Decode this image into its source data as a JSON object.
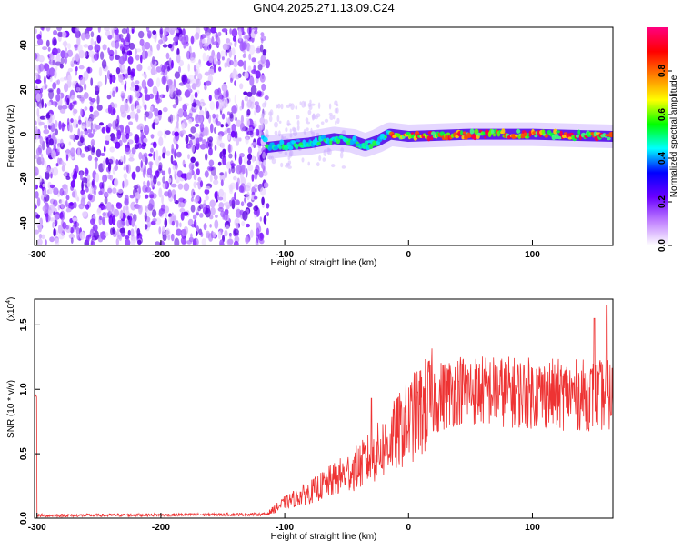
{
  "title": "GN04.2025.271.13.09.C24",
  "chart_data": [
    {
      "type": "heatmap",
      "xlabel": "Height of straight line (km)",
      "ylabel": "Frequency (Hz)",
      "xlim": [
        -302,
        165
      ],
      "ylim": [
        -50,
        48
      ],
      "x_ticks": [
        -300,
        -200,
        -100,
        0,
        100
      ],
      "y_ticks": [
        -40,
        -20,
        0,
        20,
        40
      ],
      "grid": false,
      "colorbar": {
        "label": "Normalized spectral amplitude",
        "range": [
          0,
          1
        ],
        "ticks": [
          "0.0",
          "0.2",
          "0.4",
          "0.6",
          "0.8"
        ],
        "colormap": [
          "#ffffff",
          "#c080ff",
          "#6a00ff",
          "#0000ff",
          "#00ffff",
          "#00ff00",
          "#ffff00",
          "#ff8000",
          "#ff0000",
          "#ff0080"
        ]
      },
      "noise_region_x": [
        -302,
        -118
      ],
      "signal_track": [
        {
          "x": -115,
          "y": -6
        },
        {
          "x": -100,
          "y": -5
        },
        {
          "x": -80,
          "y": -4
        },
        {
          "x": -60,
          "y": -2
        },
        {
          "x": -45,
          "y": -3
        },
        {
          "x": -35,
          "y": -5
        },
        {
          "x": -25,
          "y": -3
        },
        {
          "x": -15,
          "y": 0
        },
        {
          "x": 0,
          "y": -1
        },
        {
          "x": 50,
          "y": 0
        },
        {
          "x": 100,
          "y": 0
        },
        {
          "x": 165,
          "y": -1
        }
      ]
    },
    {
      "type": "line",
      "xlabel": "Height of straight line (km)",
      "ylabel": "SNR (10 * v/v)",
      "y_multiplier": "(x10",
      "y_multiplier_exp": "4",
      "y_multiplier_close": ")",
      "xlim": [
        -302,
        165
      ],
      "ylim": [
        0,
        1.7
      ],
      "x_ticks": [
        -300,
        -200,
        -100,
        0,
        100
      ],
      "y_ticks": [
        "0.0",
        "0.5",
        "1.0",
        "1.5"
      ],
      "series_color": "#ee3333",
      "envelope": [
        {
          "x": -300,
          "y": 0.02
        },
        {
          "x": -115,
          "y": 0.03
        },
        {
          "x": -100,
          "y": 0.12
        },
        {
          "x": -80,
          "y": 0.2
        },
        {
          "x": -60,
          "y": 0.3
        },
        {
          "x": -40,
          "y": 0.4
        },
        {
          "x": -20,
          "y": 0.55
        },
        {
          "x": 0,
          "y": 0.75
        },
        {
          "x": 20,
          "y": 0.92
        },
        {
          "x": 40,
          "y": 1.0
        },
        {
          "x": 80,
          "y": 0.98
        },
        {
          "x": 120,
          "y": 0.96
        },
        {
          "x": 165,
          "y": 0.95
        }
      ],
      "spikes": [
        {
          "x": -30,
          "y": 0.93
        },
        {
          "x": 150,
          "y": 1.55
        },
        {
          "x": 160,
          "y": 1.65
        }
      ]
    }
  ]
}
